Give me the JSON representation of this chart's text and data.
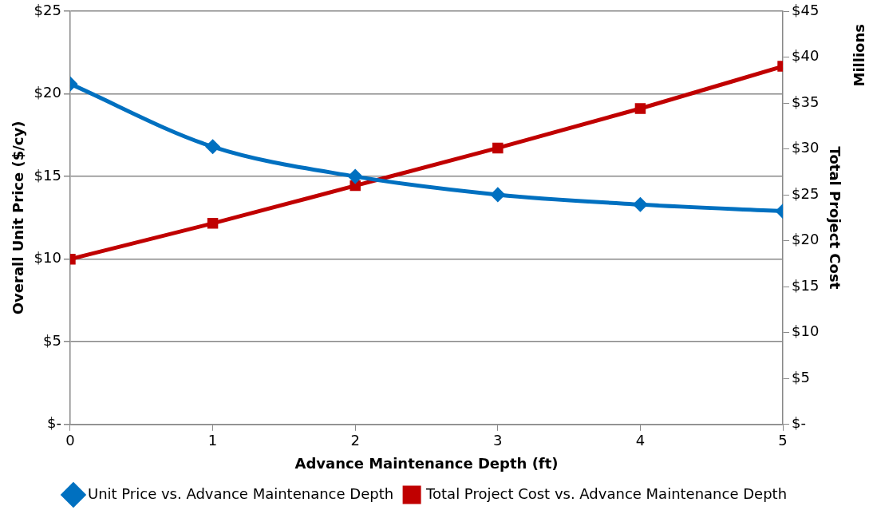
{
  "chart_data": {
    "type": "line",
    "xlabel": "Advance Maintenance Depth (ft)",
    "ylabel": "Overall Unit Price ($/cy)",
    "y2label": "Total Project Cost",
    "annotations": [
      "Millions"
    ],
    "x": [
      0,
      1,
      2,
      3,
      4,
      5
    ],
    "xlim": [
      0,
      5
    ],
    "xticks": [
      0,
      1,
      2,
      3,
      4,
      5
    ],
    "ylim": [
      0,
      25
    ],
    "yticks": [
      {
        "value": 0,
        "label": "$-"
      },
      {
        "value": 5,
        "label": "$5"
      },
      {
        "value": 10,
        "label": "$10"
      },
      {
        "value": 15,
        "label": "$15"
      },
      {
        "value": 20,
        "label": "$20"
      },
      {
        "value": 25,
        "label": "$25"
      }
    ],
    "y2lim": [
      0,
      45
    ],
    "y2ticks": [
      {
        "value": 0,
        "label": "$-"
      },
      {
        "value": 5,
        "label": "$5"
      },
      {
        "value": 10,
        "label": "$10"
      },
      {
        "value": 15,
        "label": "$15"
      },
      {
        "value": 20,
        "label": "$20"
      },
      {
        "value": 25,
        "label": "$25"
      },
      {
        "value": 30,
        "label": "$30"
      },
      {
        "value": 35,
        "label": "$35"
      },
      {
        "value": 40,
        "label": "$40"
      },
      {
        "value": 45,
        "label": "$45"
      }
    ],
    "grid": "y",
    "legend": "bottom",
    "series": [
      {
        "name": "Unit Price vs. Advance Maintenance Depth",
        "color": "#0070c0",
        "marker": "diamond",
        "values": [
          20.6,
          16.8,
          15.0,
          13.9,
          13.3,
          12.9
        ]
      },
      {
        "name": "Total Project Cost vs. Advance Maintenance Depth",
        "color": "#c00000",
        "marker": "square",
        "axis": "y2",
        "values": [
          18.0,
          21.9,
          26.0,
          30.1,
          34.4,
          39.0
        ]
      }
    ]
  }
}
